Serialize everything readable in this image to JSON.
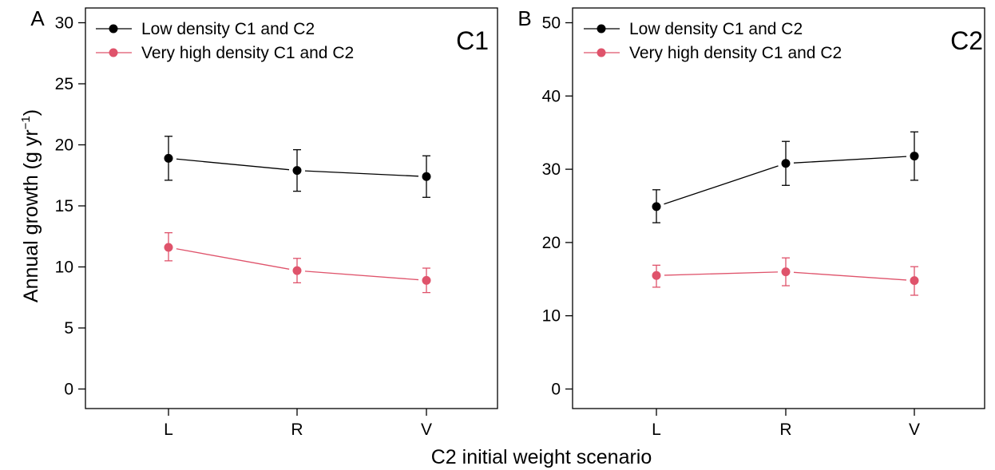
{
  "figure": {
    "ylabel": "Annual growth (g yr",
    "ylabel_superscript": "−1",
    "ylabel_close": ")",
    "xlabel": "C2 initial weight scenario"
  },
  "colors": {
    "low": "#000000",
    "high": "#DF536B"
  },
  "chart_data": [
    {
      "type": "line",
      "panel_letter": "A",
      "tag": "C1",
      "categories": [
        "L",
        "R",
        "V"
      ],
      "xlabel": "C2 initial weight scenario",
      "ylabel": "Annual growth (g yr−1)",
      "ylim": [
        0,
        30
      ],
      "yticks": [
        0,
        5,
        10,
        15,
        20,
        25,
        30
      ],
      "legend_position": "top-left",
      "grid": false,
      "series": [
        {
          "name": "Low density C1 and C2",
          "color": "#000000",
          "values": [
            18.9,
            17.9,
            17.4
          ],
          "error_lower": [
            17.1,
            16.2,
            15.7
          ],
          "error_upper": [
            20.7,
            19.6,
            19.1
          ]
        },
        {
          "name": "Very high density C1 and C2",
          "color": "#DF536B",
          "values": [
            11.6,
            9.7,
            8.9
          ],
          "error_lower": [
            10.5,
            8.7,
            7.9
          ],
          "error_upper": [
            12.8,
            10.7,
            9.9
          ]
        }
      ]
    },
    {
      "type": "line",
      "panel_letter": "B",
      "tag": "C2",
      "categories": [
        "L",
        "R",
        "V"
      ],
      "xlabel": "C2 initial weight scenario",
      "ylabel": "",
      "ylim": [
        0,
        50
      ],
      "yticks": [
        0,
        10,
        20,
        30,
        40,
        50
      ],
      "legend_position": "top-left",
      "grid": false,
      "series": [
        {
          "name": "Low density C1 and C2",
          "color": "#000000",
          "values": [
            24.9,
            30.8,
            31.8
          ],
          "error_lower": [
            22.7,
            27.8,
            28.5
          ],
          "error_upper": [
            27.2,
            33.8,
            35.1
          ]
        },
        {
          "name": "Very high density C1 and C2",
          "color": "#DF536B",
          "values": [
            15.5,
            16.0,
            14.8
          ],
          "error_lower": [
            13.9,
            14.1,
            12.8
          ],
          "error_upper": [
            16.9,
            17.9,
            16.7
          ]
        }
      ]
    }
  ]
}
